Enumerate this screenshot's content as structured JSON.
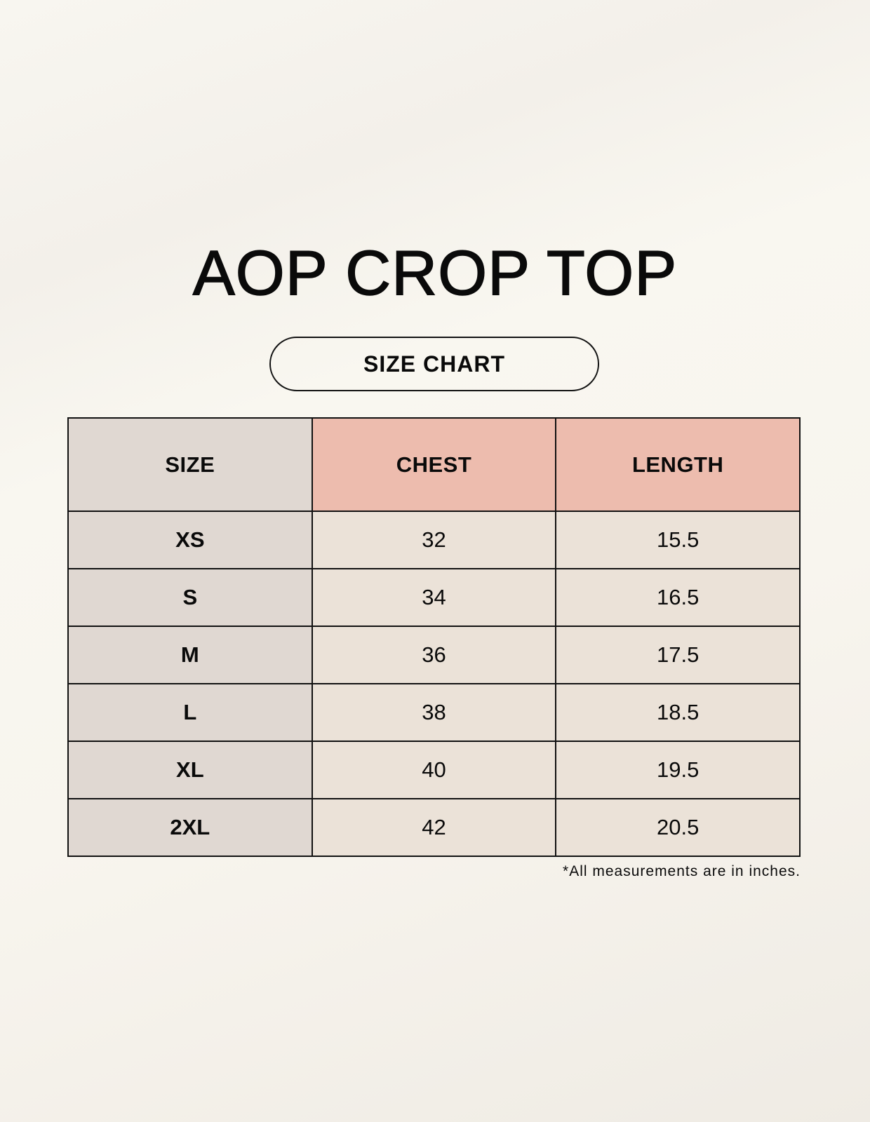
{
  "title": "AOP CROP TOP",
  "subtitle": "SIZE CHART",
  "colors": {
    "background": "#f8f5ee",
    "size_column": "#e0d8d2",
    "header_accent": "#edbcae",
    "data_cells": "#ebe2d8",
    "border": "#111111"
  },
  "table": {
    "headers": [
      "SIZE",
      "CHEST",
      "LENGTH"
    ],
    "rows": [
      [
        "XS",
        "32",
        "15.5"
      ],
      [
        "S",
        "34",
        "16.5"
      ],
      [
        "M",
        "36",
        "17.5"
      ],
      [
        "L",
        "38",
        "18.5"
      ],
      [
        "XL",
        "40",
        "19.5"
      ],
      [
        "2XL",
        "42",
        "20.5"
      ]
    ]
  },
  "footnote": "*All measurements are in inches."
}
